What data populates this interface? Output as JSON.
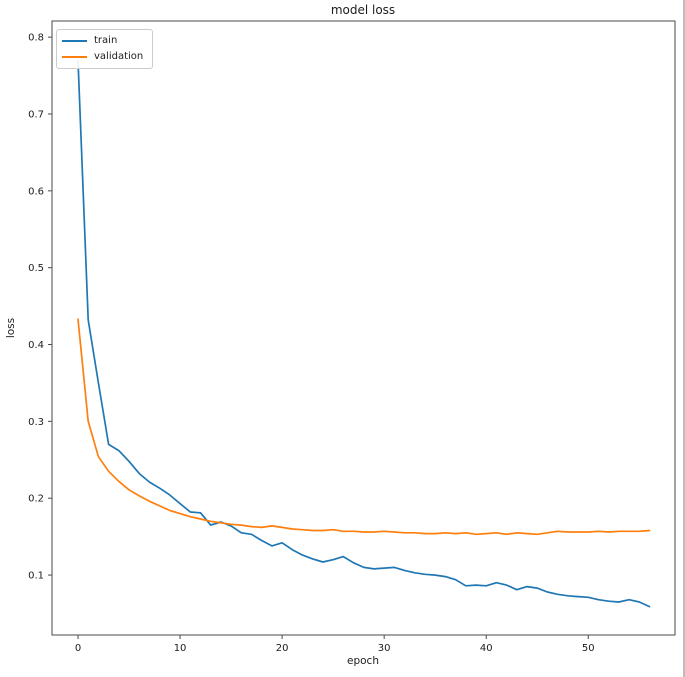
{
  "chart_data": {
    "type": "line",
    "title": "model loss",
    "xlabel": "epoch",
    "ylabel": "loss",
    "x": [
      0,
      1,
      2,
      3,
      4,
      5,
      6,
      7,
      8,
      9,
      10,
      11,
      12,
      13,
      14,
      15,
      16,
      17,
      18,
      19,
      20,
      21,
      22,
      23,
      24,
      25,
      26,
      27,
      28,
      29,
      30,
      31,
      32,
      33,
      34,
      35,
      36,
      37,
      38,
      39,
      40,
      41,
      42,
      43,
      44,
      45,
      46,
      47,
      48,
      49,
      50,
      51,
      52,
      53,
      54,
      55,
      56
    ],
    "series": [
      {
        "name": "train",
        "color": "#1f77b4",
        "values": [
          0.77,
          0.432,
          0.35,
          0.27,
          0.262,
          0.248,
          0.232,
          0.221,
          0.213,
          0.204,
          0.193,
          0.182,
          0.181,
          0.165,
          0.169,
          0.164,
          0.155,
          0.153,
          0.145,
          0.138,
          0.142,
          0.133,
          0.126,
          0.121,
          0.117,
          0.12,
          0.124,
          0.116,
          0.11,
          0.108,
          0.109,
          0.11,
          0.106,
          0.103,
          0.101,
          0.1,
          0.098,
          0.094,
          0.086,
          0.087,
          0.086,
          0.09,
          0.087,
          0.081,
          0.085,
          0.083,
          0.078,
          0.075,
          0.073,
          0.072,
          0.071,
          0.068,
          0.066,
          0.065,
          0.068,
          0.065,
          0.059
        ]
      },
      {
        "name": "validation",
        "color": "#ff7f0e",
        "values": [
          0.433,
          0.3,
          0.254,
          0.235,
          0.222,
          0.211,
          0.203,
          0.196,
          0.19,
          0.184,
          0.18,
          0.176,
          0.173,
          0.17,
          0.168,
          0.166,
          0.165,
          0.163,
          0.162,
          0.164,
          0.162,
          0.16,
          0.159,
          0.158,
          0.158,
          0.159,
          0.157,
          0.157,
          0.156,
          0.156,
          0.157,
          0.156,
          0.155,
          0.155,
          0.154,
          0.154,
          0.155,
          0.154,
          0.155,
          0.153,
          0.154,
          0.155,
          0.153,
          0.155,
          0.154,
          0.153,
          0.155,
          0.157,
          0.156,
          0.156,
          0.156,
          0.157,
          0.156,
          0.157,
          0.157,
          0.157,
          0.158
        ]
      }
    ],
    "xticks": [
      0,
      10,
      20,
      30,
      40,
      50
    ],
    "yticks": [
      0.1,
      0.2,
      0.3,
      0.4,
      0.5,
      0.6,
      0.7,
      0.8
    ],
    "xlim": [
      -2.55,
      58.5
    ],
    "ylim": [
      0.022,
      0.821
    ],
    "grid": false,
    "legend_position": "upper left",
    "axis_color": "#4a4a4a",
    "text_color": "#1c1c1c"
  }
}
